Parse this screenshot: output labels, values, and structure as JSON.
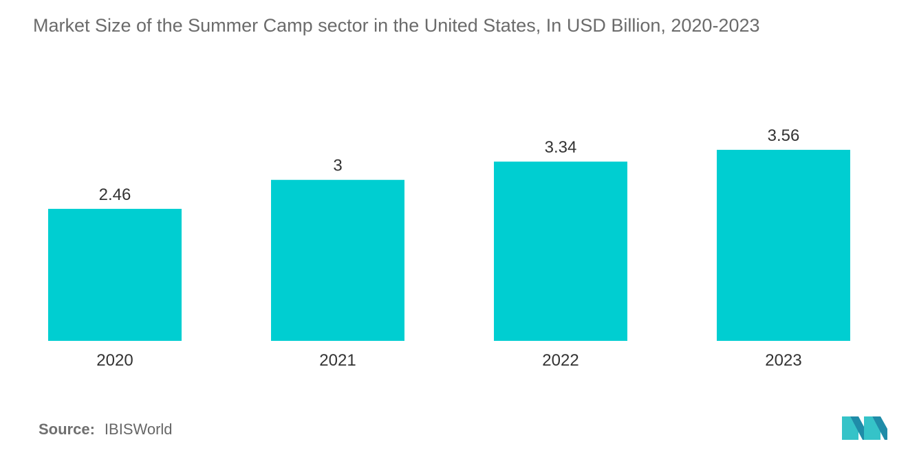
{
  "chart_data": {
    "type": "bar",
    "title": "Market Size of the Summer Camp sector in the United States, In USD Billion, 2020-2023",
    "categories": [
      "2020",
      "2021",
      "2022",
      "2023"
    ],
    "values": [
      2.46,
      3,
      3.34,
      3.56
    ],
    "value_labels": [
      "2.46",
      "3",
      "3.34",
      "3.56"
    ],
    "xlabel": "",
    "ylabel": "",
    "ylim": [
      0,
      3.56
    ],
    "grid": false,
    "legend": "none",
    "colors": {
      "bar": "#00CED1",
      "value_label": "#333333",
      "tick_label": "#333333"
    }
  },
  "source": {
    "label": "Source:",
    "value": "IBISWorld"
  },
  "logo": {
    "icon": "mordor-intelligence-logo-icon",
    "colors": [
      "#1f8ca8",
      "#35c3c8"
    ]
  }
}
